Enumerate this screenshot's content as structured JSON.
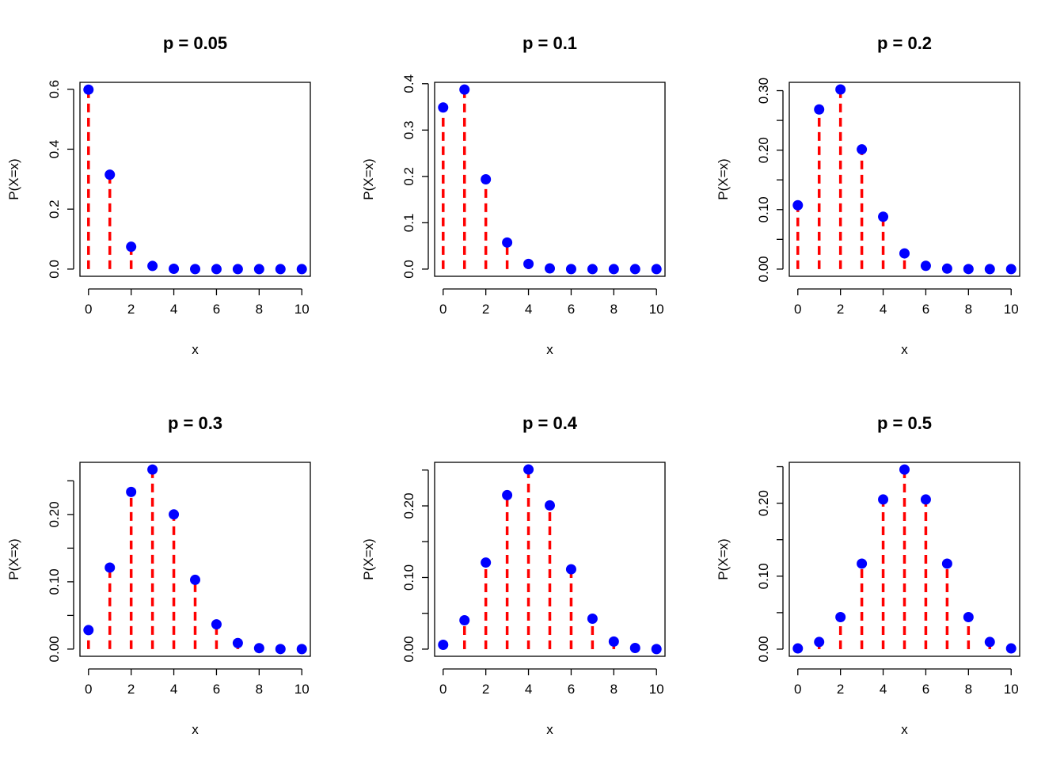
{
  "colors": {
    "stem": "#ff0000",
    "point": "#0000ff",
    "axis": "#000000",
    "background": "#ffffff"
  },
  "chart_data": [
    {
      "type": "scatter",
      "title": "p =  0.05",
      "xlabel": "x",
      "ylabel": "P(X=x)",
      "x": [
        0,
        1,
        2,
        3,
        4,
        5,
        6,
        7,
        8,
        9,
        10
      ],
      "y": [
        0.5987,
        0.3151,
        0.0746,
        0.0105,
        0.001,
        0.0001,
        0.0,
        0.0,
        0.0,
        0.0,
        0.0
      ],
      "xlim": [
        -0.4,
        10.4
      ],
      "ylim": [
        -0.024,
        0.623
      ],
      "xticks": [
        "0",
        "2",
        "4",
        "6",
        "8",
        "10"
      ],
      "yticks": [
        0,
        0.2,
        0.4,
        0.6
      ],
      "ytick_labels": [
        "0.0",
        "0.2",
        "0.4",
        "0.6"
      ],
      "grid": false,
      "style": "stems (dashed) with points"
    },
    {
      "type": "scatter",
      "title": "p =  0.1",
      "xlabel": "x",
      "ylabel": "P(X=x)",
      "x": [
        0,
        1,
        2,
        3,
        4,
        5,
        6,
        7,
        8,
        9,
        10
      ],
      "y": [
        0.3487,
        0.3874,
        0.1937,
        0.0574,
        0.0112,
        0.0015,
        0.0001,
        0.0,
        0.0,
        0.0,
        0.0
      ],
      "xlim": [
        -0.4,
        10.4
      ],
      "ylim": [
        -0.0155,
        0.403
      ],
      "xticks": [
        "0",
        "2",
        "4",
        "6",
        "8",
        "10"
      ],
      "yticks": [
        0,
        0.1,
        0.2,
        0.3,
        0.4
      ],
      "ytick_labels": [
        "0.0",
        "0.1",
        "0.2",
        "0.3",
        "0.4"
      ],
      "grid": false,
      "style": "stems (dashed) with points"
    },
    {
      "type": "scatter",
      "title": "p =  0.2",
      "xlabel": "x",
      "ylabel": "P(X=x)",
      "x": [
        0,
        1,
        2,
        3,
        4,
        5,
        6,
        7,
        8,
        9,
        10
      ],
      "y": [
        0.1074,
        0.2684,
        0.302,
        0.2013,
        0.0881,
        0.0264,
        0.0055,
        0.0008,
        0.0001,
        0.0,
        0.0
      ],
      "xlim": [
        -0.4,
        10.4
      ],
      "ylim": [
        -0.0121,
        0.314
      ],
      "xticks": [
        "0",
        "2",
        "4",
        "6",
        "8",
        "10"
      ],
      "yticks": [
        0,
        0.1,
        0.2,
        0.3
      ],
      "ytick_labels": [
        "0.00",
        "0.10",
        "0.20",
        "0.30"
      ],
      "minor_yticks": [
        0.05,
        0.15,
        0.25
      ],
      "grid": false,
      "style": "stems (dashed) with points"
    },
    {
      "type": "scatter",
      "title": "p =  0.3",
      "xlabel": "x",
      "ylabel": "P(X=x)",
      "x": [
        0,
        1,
        2,
        3,
        4,
        5,
        6,
        7,
        8,
        9,
        10
      ],
      "y": [
        0.0282,
        0.1211,
        0.2335,
        0.2668,
        0.2001,
        0.1029,
        0.0368,
        0.009,
        0.0014,
        0.0001,
        0.0
      ],
      "xlim": [
        -0.4,
        10.4
      ],
      "ylim": [
        -0.0107,
        0.2775
      ],
      "xticks": [
        "0",
        "2",
        "4",
        "6",
        "8",
        "10"
      ],
      "yticks": [
        0,
        0.1,
        0.2
      ],
      "ytick_labels": [
        "0.00",
        "0.10",
        "0.20"
      ],
      "minor_yticks": [
        0.05,
        0.15,
        0.25
      ],
      "grid": false,
      "style": "stems (dashed) with points"
    },
    {
      "type": "scatter",
      "title": "p =  0.4",
      "xlabel": "x",
      "ylabel": "P(X=x)",
      "x": [
        0,
        1,
        2,
        3,
        4,
        5,
        6,
        7,
        8,
        9,
        10
      ],
      "y": [
        0.006,
        0.0403,
        0.1209,
        0.215,
        0.2508,
        0.2007,
        0.1115,
        0.0425,
        0.0106,
        0.0016,
        0.0001
      ],
      "xlim": [
        -0.4,
        10.4
      ],
      "ylim": [
        -0.01,
        0.2608
      ],
      "xticks": [
        "0",
        "2",
        "4",
        "6",
        "8",
        "10"
      ],
      "yticks": [
        0,
        0.1,
        0.2
      ],
      "ytick_labels": [
        "0.00",
        "0.10",
        "0.20"
      ],
      "minor_yticks": [
        0.05,
        0.15,
        0.25
      ],
      "grid": false,
      "style": "stems (dashed) with points"
    },
    {
      "type": "scatter",
      "title": "p =  0.5",
      "xlabel": "x",
      "ylabel": "P(X=x)",
      "x": [
        0,
        1,
        2,
        3,
        4,
        5,
        6,
        7,
        8,
        9,
        10
      ],
      "y": [
        0.001,
        0.0098,
        0.0439,
        0.1172,
        0.2051,
        0.2461,
        0.2051,
        0.1172,
        0.0439,
        0.0098,
        0.001
      ],
      "xlim": [
        -0.4,
        10.4
      ],
      "ylim": [
        -0.0098,
        0.256
      ],
      "xticks": [
        "0",
        "2",
        "4",
        "6",
        "8",
        "10"
      ],
      "yticks": [
        0,
        0.1,
        0.2
      ],
      "ytick_labels": [
        "0.00",
        "0.10",
        "0.20"
      ],
      "minor_yticks": [
        0.05,
        0.15,
        0.25
      ],
      "grid": false,
      "style": "stems (dashed) with points"
    }
  ]
}
